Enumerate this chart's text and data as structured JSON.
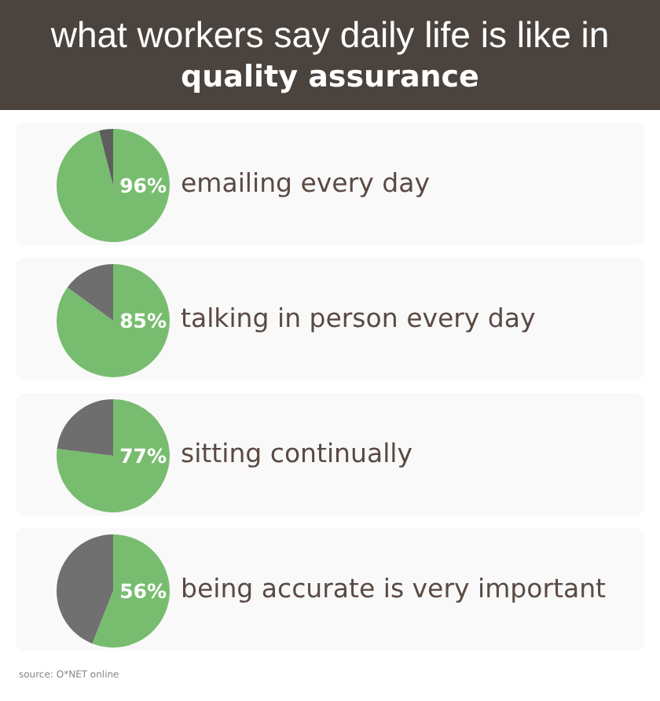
{
  "chart_data": [
    {
      "type": "pie",
      "title": "what workers say daily life is like in",
      "subtitle": "quality assurance",
      "categories": [
        "emailing every day",
        null
      ],
      "values": [
        96,
        4
      ],
      "colors": [
        "#78bd6f",
        "#5e5e5e"
      ],
      "value_labels": [
        "96%",
        null
      ]
    },
    {
      "type": "pie",
      "categories": [
        "talking in person every day",
        null
      ],
      "values": [
        85,
        15
      ],
      "colors": [
        "#78bd6f",
        "#6e6e6e"
      ],
      "value_labels": [
        "85%",
        null
      ]
    },
    {
      "type": "pie",
      "categories": [
        "sitting continually",
        null
      ],
      "values": [
        77,
        23
      ],
      "colors": [
        "#78bd6f",
        "#6e6e6e"
      ],
      "value_labels": [
        "77%",
        null
      ]
    },
    {
      "type": "pie",
      "categories": [
        "being accurate is very important",
        null
      ],
      "values": [
        56,
        44
      ],
      "colors": [
        "#78bd6f",
        "#707070"
      ],
      "value_labels": [
        "56%",
        null
      ],
      "annotations": [
        "source: O*NET online"
      ]
    }
  ]
}
